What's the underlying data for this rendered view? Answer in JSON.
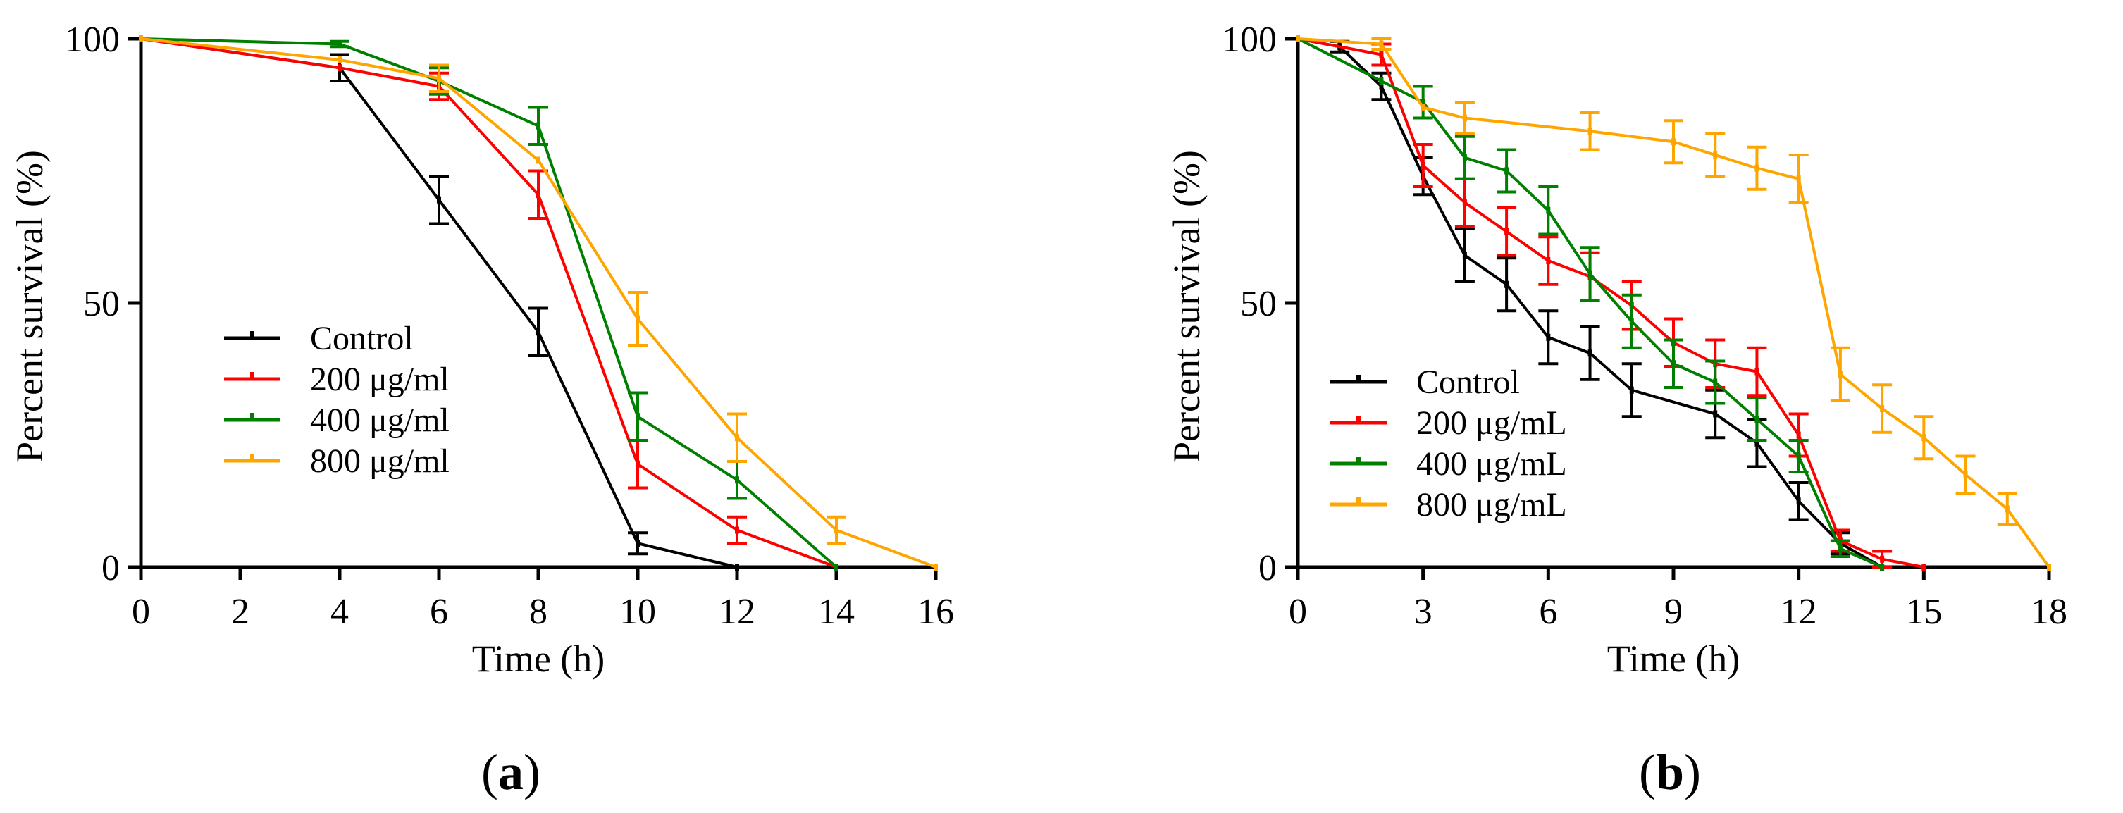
{
  "chart_data": [
    {
      "type": "line",
      "panel_label": "(a)",
      "panel_letter": "a",
      "xlabel": "Time (h)",
      "ylabel": "Percent survival (%)",
      "xlim": [
        0,
        16
      ],
      "ylim": [
        0,
        100
      ],
      "xticks": [
        0,
        2,
        4,
        6,
        8,
        10,
        12,
        14,
        16
      ],
      "yticks": [
        0,
        50,
        100
      ],
      "legend_position": "center-left",
      "series": [
        {
          "name": "Control",
          "color": "#000000",
          "x": [
            0,
            4,
            6,
            8,
            10,
            12
          ],
          "y": [
            100,
            94.5,
            69.5,
            44.5,
            4.5,
            0
          ],
          "err": [
            0,
            2.5,
            4.5,
            4.5,
            2,
            0
          ]
        },
        {
          "name": "200 μg/ml",
          "color": "#ff0000",
          "x": [
            0,
            4,
            6,
            8,
            10,
            12,
            14
          ],
          "y": [
            100,
            94.5,
            91,
            70.5,
            19.5,
            7,
            0
          ],
          "err": [
            0,
            0,
            2.5,
            4.5,
            4.5,
            2.5,
            0
          ]
        },
        {
          "name": "400 μg/ml",
          "color": "#008000",
          "x": [
            0,
            4,
            6,
            8,
            10,
            12,
            14
          ],
          "y": [
            100,
            99,
            92,
            83.5,
            28.5,
            16.5,
            0
          ],
          "err": [
            0,
            0.5,
            2.5,
            3.5,
            4.5,
            3.5,
            0
          ]
        },
        {
          "name": "800 μg/ml",
          "color": "#ffa500",
          "x": [
            0,
            4,
            6,
            8,
            10,
            12,
            14,
            16
          ],
          "y": [
            100,
            96,
            92.5,
            77,
            47,
            24.5,
            7,
            0
          ],
          "err": [
            0,
            0,
            2.5,
            0,
            5,
            4.5,
            2.5,
            0
          ]
        }
      ]
    },
    {
      "type": "line",
      "panel_label": "(b)",
      "panel_letter": "b",
      "xlabel": "Time (h)",
      "ylabel": "Percent survival (%)",
      "xlim": [
        0,
        18
      ],
      "ylim": [
        0,
        100
      ],
      "xticks": [
        0,
        3,
        6,
        9,
        12,
        15,
        18
      ],
      "yticks": [
        0,
        50,
        100
      ],
      "legend_position": "bottom-left",
      "series": [
        {
          "name": "Control",
          "color": "#000000",
          "x": [
            0,
            1,
            2,
            3,
            4,
            5,
            6,
            7,
            8,
            10,
            11,
            12,
            13,
            14
          ],
          "y": [
            100,
            98.5,
            91,
            74,
            59,
            53.5,
            43.5,
            40.5,
            33.5,
            29,
            23.5,
            12.5,
            4.5,
            0
          ],
          "err": [
            0,
            1,
            2.5,
            3.5,
            5,
            5,
            5,
            5,
            5,
            4.5,
            4.5,
            3.5,
            2,
            0
          ]
        },
        {
          "name": "200 μg/mL",
          "color": "#ff0000",
          "x": [
            0,
            2,
            3,
            4,
            5,
            6,
            7,
            8,
            9,
            10,
            11,
            12,
            13,
            14,
            15
          ],
          "y": [
            100,
            97,
            76,
            69,
            63.5,
            58,
            55,
            49.5,
            42.5,
            38.5,
            37,
            25,
            5,
            1.5,
            0
          ],
          "err": [
            0,
            2,
            4,
            4.5,
            4.5,
            4.5,
            4.5,
            4.5,
            4.5,
            4.5,
            4.5,
            4,
            2,
            1.5,
            0
          ]
        },
        {
          "name": "400 μg/mL",
          "color": "#008000",
          "x": [
            0,
            2,
            3,
            4,
            5,
            6,
            7,
            8,
            9,
            10,
            11,
            12,
            13,
            14
          ],
          "y": [
            100,
            92,
            88,
            77.5,
            75,
            67.5,
            55.5,
            46.5,
            38.5,
            35,
            28,
            21,
            3.5,
            0
          ],
          "err": [
            0,
            0,
            3,
            4,
            4,
            4.5,
            5,
            5,
            4.5,
            4,
            4,
            3,
            1.5,
            0
          ]
        },
        {
          "name": "800 μg/mL",
          "color": "#ffa500",
          "x": [
            0,
            2,
            3,
            4,
            7,
            9,
            10,
            11,
            12,
            13,
            14,
            15,
            16,
            17,
            18
          ],
          "y": [
            100,
            99,
            87,
            85,
            82.5,
            80.5,
            78,
            75.5,
            73.5,
            36.5,
            30,
            24.5,
            17.5,
            11,
            0
          ],
          "err": [
            0,
            1,
            0,
            3,
            3.5,
            4,
            4,
            4,
            4.5,
            5,
            4.5,
            4,
            3.5,
            3,
            0
          ]
        }
      ]
    }
  ]
}
